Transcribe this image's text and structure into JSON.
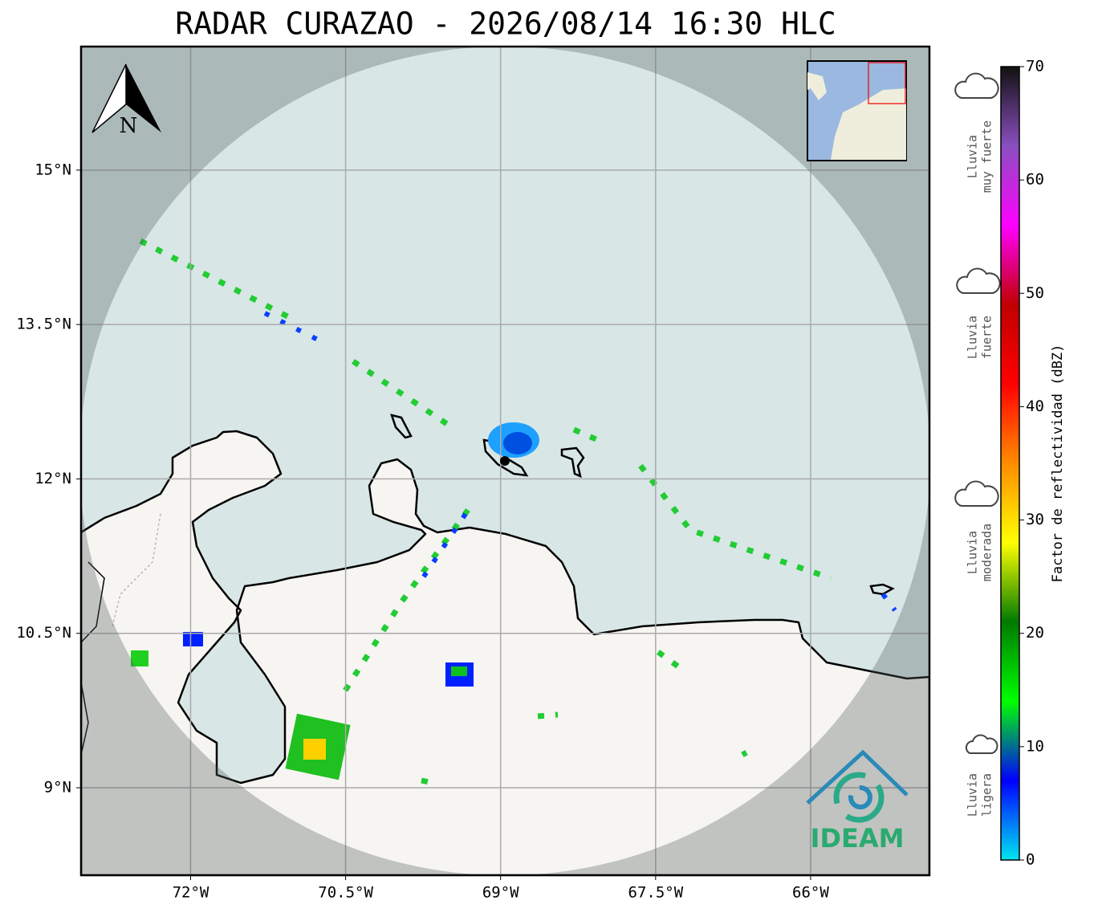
{
  "title": "RADAR CURAZAO - 2026/08/14 16:30 HLC",
  "map": {
    "xlim": [
      -73.06,
      -64.85
    ],
    "ylim": [
      8.15,
      16.2
    ],
    "xticks": [
      {
        "value": -72,
        "label": "72°W"
      },
      {
        "value": -70.5,
        "label": "70.5°W"
      },
      {
        "value": -69,
        "label": "69°W"
      },
      {
        "value": -67.5,
        "label": "67.5°W"
      },
      {
        "value": -66,
        "label": "66°W"
      }
    ],
    "yticks": [
      {
        "value": 15,
        "label": "15°N"
      },
      {
        "value": 13.5,
        "label": "13.5°N"
      },
      {
        "value": 12,
        "label": "12°N"
      },
      {
        "value": 10.5,
        "label": "10.5°N"
      },
      {
        "value": 9,
        "label": "9°N"
      }
    ],
    "grid": true
  },
  "north_label": "N",
  "logo": "IDEAM",
  "colorbar": {
    "label": "Factor de reflectividad (dBZ)",
    "lim": [
      0,
      70
    ],
    "ticks": [
      0,
      10,
      20,
      30,
      40,
      50,
      60,
      70
    ],
    "colors": [
      "#00e5f0",
      "#0000ff",
      "#00ff00",
      "#007a00",
      "#ffff00",
      "#ff8c00",
      "#ff0000",
      "#c00000",
      "#ff00ff",
      "#8a4fc0",
      "#111111"
    ]
  },
  "legend": [
    {
      "lines": [
        "Lluvia",
        "muy fuerte"
      ]
    },
    {
      "lines": [
        "Lluvia",
        "fuerte"
      ]
    },
    {
      "lines": [
        "Lluvia",
        "moderada"
      ]
    },
    {
      "lines": [
        "Lluvia",
        "ligera"
      ]
    }
  ]
}
